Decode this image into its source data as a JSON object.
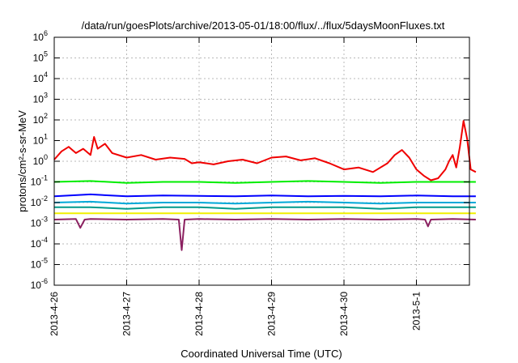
{
  "chart_data": {
    "type": "line",
    "title": "/data/run/goesPlots/archive/2013-05-01/18:00/flux/../flux/5daysMoonFluxes.txt",
    "xlabel": "Coordinated Universal Time (UTC)",
    "ylabel": "protons/cm²-s-sr-MeV",
    "x_ticks": [
      "2013-4-26",
      "2013-4-27",
      "2013-4-28",
      "2013-4-29",
      "2013-4-30",
      "2013-5-1"
    ],
    "y_scale": "log",
    "ylim": [
      1e-06,
      1000000.0
    ],
    "y_ticks": [
      {
        "value": 1e-06,
        "base": "10",
        "exp": "-6"
      },
      {
        "value": 1e-05,
        "base": "10",
        "exp": "-5"
      },
      {
        "value": 0.0001,
        "base": "10",
        "exp": "-4"
      },
      {
        "value": 0.001,
        "base": "10",
        "exp": "-3"
      },
      {
        "value": 0.01,
        "base": "10",
        "exp": "-2"
      },
      {
        "value": 0.1,
        "base": "10",
        "exp": "-1"
      },
      {
        "value": 1,
        "base": "10",
        "exp": "0"
      },
      {
        "value": 10,
        "base": "10",
        "exp": "1"
      },
      {
        "value": 100,
        "base": "10",
        "exp": "2"
      },
      {
        "value": 1000,
        "base": "10",
        "exp": "3"
      },
      {
        "value": 10000,
        "base": "10",
        "exp": "4"
      },
      {
        "value": 100000,
        "base": "10",
        "exp": "5"
      },
      {
        "value": 1000000,
        "base": "10",
        "exp": "6"
      }
    ],
    "xlim_days": [
      0,
      5.82
    ],
    "grid": true,
    "series": [
      {
        "color": "#f00000",
        "x": [
          0,
          0.1,
          0.2,
          0.3,
          0.4,
          0.5,
          0.55,
          0.6,
          0.7,
          0.8,
          1.0,
          1.2,
          1.4,
          1.6,
          1.8,
          1.9,
          2.0,
          2.2,
          2.4,
          2.6,
          2.8,
          3.0,
          3.2,
          3.4,
          3.6,
          3.8,
          4.0,
          4.2,
          4.4,
          4.6,
          4.7,
          4.8,
          4.9,
          5.0,
          5.1,
          5.2,
          5.3,
          5.4,
          5.45,
          5.5,
          5.55,
          5.6,
          5.65,
          5.7,
          5.75,
          5.82
        ],
        "y": [
          1.2,
          3,
          5,
          2.5,
          4,
          2,
          15,
          4,
          7,
          2.5,
          1.5,
          2,
          1.2,
          1.5,
          1.3,
          0.8,
          0.9,
          0.7,
          1,
          1.2,
          0.8,
          1.5,
          1.7,
          1.1,
          1.4,
          0.8,
          0.4,
          0.5,
          0.3,
          0.8,
          2,
          3.5,
          1.5,
          0.4,
          0.2,
          0.12,
          0.15,
          0.4,
          1,
          2,
          0.5,
          5,
          90,
          12,
          0.4,
          0.3
        ]
      },
      {
        "color": "#00ee00",
        "x": [
          0,
          0.5,
          1,
          1.5,
          2,
          2.5,
          3,
          3.5,
          4,
          4.5,
          5,
          5.5,
          5.82
        ],
        "y": [
          0.1,
          0.11,
          0.09,
          0.1,
          0.1,
          0.09,
          0.1,
          0.11,
          0.1,
          0.09,
          0.1,
          0.1,
          0.1
        ]
      },
      {
        "color": "#0000ff",
        "x": [
          0,
          0.5,
          1,
          1.5,
          2,
          2.5,
          3,
          3.5,
          4,
          4.5,
          5,
          5.5,
          5.82
        ],
        "y": [
          0.02,
          0.025,
          0.02,
          0.022,
          0.021,
          0.02,
          0.022,
          0.02,
          0.021,
          0.02,
          0.022,
          0.02,
          0.02
        ]
      },
      {
        "color": "#00a8d8",
        "x": [
          0,
          0.5,
          1,
          1.5,
          2,
          2.5,
          3,
          3.5,
          4,
          4.5,
          5,
          5.5,
          5.82
        ],
        "y": [
          0.01,
          0.011,
          0.009,
          0.01,
          0.01,
          0.009,
          0.01,
          0.011,
          0.01,
          0.009,
          0.01,
          0.01,
          0.01
        ]
      },
      {
        "color": "#009a8a",
        "x": [
          0,
          0.5,
          1,
          1.5,
          2,
          2.5,
          3,
          3.5,
          4,
          4.5,
          5,
          5.5,
          5.82
        ],
        "y": [
          0.006,
          0.006,
          0.005,
          0.006,
          0.006,
          0.005,
          0.006,
          0.006,
          0.006,
          0.005,
          0.006,
          0.006,
          0.006
        ]
      },
      {
        "color": "#f0f000",
        "x": [
          0,
          0.5,
          1,
          1.5,
          2,
          2.5,
          3,
          3.5,
          4,
          4.5,
          5,
          5.5,
          5.82
        ],
        "y": [
          0.003,
          0.003,
          0.003,
          0.003,
          0.003,
          0.003,
          0.003,
          0.003,
          0.003,
          0.003,
          0.003,
          0.003,
          0.003
        ]
      },
      {
        "color": "#8b2060",
        "x": [
          0,
          0.3,
          0.36,
          0.42,
          0.5,
          1,
          1.5,
          1.72,
          1.76,
          1.8,
          2,
          2.5,
          3,
          3.5,
          4,
          4.5,
          5,
          5.12,
          5.16,
          5.2,
          5.5,
          5.82
        ],
        "y": [
          0.0015,
          0.0016,
          0.0006,
          0.0015,
          0.0016,
          0.0015,
          0.0016,
          0.0015,
          5e-05,
          0.0015,
          0.0016,
          0.0015,
          0.0016,
          0.0015,
          0.0016,
          0.0015,
          0.0016,
          0.0015,
          0.0007,
          0.0015,
          0.0016,
          0.0015
        ]
      }
    ]
  }
}
